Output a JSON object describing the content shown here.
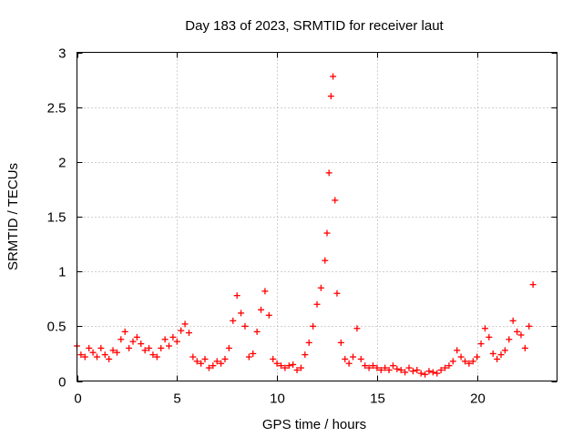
{
  "chart_data": {
    "type": "scatter",
    "title": "Day 183 of 2023, SRMTID for receiver laut",
    "xlabel": "GPS time / hours",
    "ylabel": "SRMTID / TECUs",
    "xlim": [
      0,
      24
    ],
    "ylim": [
      0,
      3
    ],
    "xticks": [
      0,
      5,
      10,
      15,
      20
    ],
    "yticks": [
      0,
      0.5,
      1,
      1.5,
      2,
      2.5,
      3
    ],
    "xtick_labels": [
      "0",
      "5",
      "10",
      "15",
      "20"
    ],
    "ytick_labels": [
      "0",
      "0.5",
      "1",
      "1.5",
      "2",
      "2.5",
      "3"
    ],
    "grid": true,
    "marker": "+",
    "series": [
      {
        "name": "SRMTID",
        "color": "#ff0000",
        "x": [
          0.0,
          0.2,
          0.4,
          0.6,
          0.8,
          1.0,
          1.2,
          1.4,
          1.6,
          1.8,
          2.0,
          2.2,
          2.4,
          2.6,
          2.8,
          3.0,
          3.2,
          3.4,
          3.6,
          3.8,
          4.0,
          4.2,
          4.4,
          4.6,
          4.8,
          5.0,
          5.2,
          5.4,
          5.6,
          5.8,
          6.0,
          6.2,
          6.4,
          6.6,
          6.8,
          7.0,
          7.2,
          7.4,
          7.6,
          7.8,
          8.0,
          8.2,
          8.4,
          8.6,
          8.8,
          9.0,
          9.2,
          9.4,
          9.6,
          9.8,
          10.0,
          10.2,
          10.4,
          10.6,
          10.8,
          11.0,
          11.2,
          11.4,
          11.6,
          11.8,
          12.0,
          12.2,
          12.4,
          12.5,
          12.6,
          12.7,
          12.8,
          12.9,
          13.0,
          13.2,
          13.4,
          13.6,
          13.8,
          14.0,
          14.2,
          14.4,
          14.6,
          14.8,
          15.0,
          15.2,
          15.4,
          15.6,
          15.8,
          16.0,
          16.2,
          16.4,
          16.6,
          16.8,
          17.0,
          17.2,
          17.4,
          17.6,
          17.8,
          18.0,
          18.2,
          18.4,
          18.6,
          18.8,
          19.0,
          19.2,
          19.4,
          19.6,
          19.8,
          20.0,
          20.2,
          20.4,
          20.6,
          20.8,
          21.0,
          21.2,
          21.4,
          21.6,
          21.8,
          22.0,
          22.2,
          22.4,
          22.6,
          22.8
        ],
        "y": [
          0.32,
          0.24,
          0.22,
          0.3,
          0.26,
          0.22,
          0.3,
          0.24,
          0.2,
          0.28,
          0.26,
          0.38,
          0.45,
          0.3,
          0.36,
          0.4,
          0.34,
          0.28,
          0.3,
          0.24,
          0.22,
          0.3,
          0.38,
          0.32,
          0.4,
          0.36,
          0.46,
          0.52,
          0.44,
          0.22,
          0.18,
          0.16,
          0.2,
          0.12,
          0.14,
          0.18,
          0.16,
          0.2,
          0.3,
          0.55,
          0.78,
          0.62,
          0.5,
          0.22,
          0.25,
          0.45,
          0.65,
          0.82,
          0.6,
          0.2,
          0.16,
          0.14,
          0.12,
          0.14,
          0.15,
          0.1,
          0.12,
          0.24,
          0.35,
          0.5,
          0.7,
          0.85,
          1.1,
          1.35,
          1.9,
          2.6,
          2.78,
          1.65,
          0.8,
          0.35,
          0.2,
          0.16,
          0.22,
          0.48,
          0.2,
          0.14,
          0.12,
          0.14,
          0.12,
          0.1,
          0.12,
          0.1,
          0.14,
          0.11,
          0.1,
          0.08,
          0.12,
          0.09,
          0.1,
          0.07,
          0.06,
          0.09,
          0.08,
          0.07,
          0.1,
          0.12,
          0.14,
          0.18,
          0.28,
          0.22,
          0.18,
          0.16,
          0.18,
          0.22,
          0.34,
          0.48,
          0.4,
          0.25,
          0.2,
          0.24,
          0.28,
          0.38,
          0.55,
          0.45,
          0.42,
          0.3,
          0.5,
          0.88
        ]
      }
    ]
  }
}
